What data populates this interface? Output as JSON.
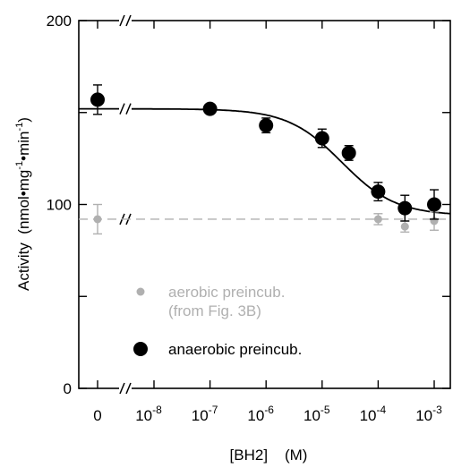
{
  "chart_data": {
    "type": "scatter",
    "xlabel": "[BH2]    (M)",
    "ylabel": "Activity  (nmol•mg",
    "ylabel_sup1": "-1",
    "ylabel_mid": "•min",
    "ylabel_sup2": "-1",
    "ylabel_end": ")",
    "ylim": [
      0,
      200
    ],
    "y_ticks": [
      "0",
      "100",
      "200"
    ],
    "x_scale": "log",
    "x_ticks": [
      {
        "label": "0",
        "value": 0
      },
      {
        "label": "10",
        "exp": "-8",
        "value": 1e-08
      },
      {
        "label": "10",
        "exp": "-7",
        "value": 1e-07
      },
      {
        "label": "10",
        "exp": "-6",
        "value": 1e-06
      },
      {
        "label": "10",
        "exp": "-5",
        "value": 1e-05
      },
      {
        "label": "10",
        "exp": "-4",
        "value": 0.0001
      },
      {
        "label": "10",
        "exp": "-3",
        "value": 0.001
      }
    ],
    "series": [
      {
        "name": "anaerobic preincub.",
        "color": "#000000",
        "marker": "large-circle",
        "points": [
          {
            "x": 0,
            "y": 157,
            "err": 8
          },
          {
            "x": 1e-07,
            "y": 152,
            "err": 0
          },
          {
            "x": 1e-06,
            "y": 143,
            "err": 4
          },
          {
            "x": 1e-05,
            "y": 136,
            "err": 5
          },
          {
            "x": 3e-05,
            "y": 128,
            "err": 4
          },
          {
            "x": 0.0001,
            "y": 107,
            "err": 5
          },
          {
            "x": 0.0003,
            "y": 98,
            "err": 7
          },
          {
            "x": 0.001,
            "y": 100,
            "err": 8
          }
        ],
        "fit": {
          "top": 152,
          "bottom": 94,
          "ic50_log": -4.65,
          "hill": 0.9
        }
      },
      {
        "name": "aerobic preincub.\n(from Fig. 3B)",
        "color": "#b0b0b0",
        "marker": "small-circle",
        "points": [
          {
            "x": 0,
            "y": 92,
            "err": 8
          },
          {
            "x": 0.0001,
            "y": 92,
            "err": 3
          },
          {
            "x": 0.0003,
            "y": 88,
            "err": 3
          },
          {
            "x": 0.001,
            "y": 91,
            "err": 5
          }
        ],
        "reference_line": 92
      }
    ],
    "legend": {
      "placement": "lower-left",
      "items": [
        {
          "label_line1": "aerobic preincub.",
          "label_line2": "(from Fig. 3B)",
          "color": "#b0b0b0",
          "marker": "small-circle"
        },
        {
          "label_line1": "anaerobic preincub.",
          "label_line2": "",
          "color": "#000000",
          "marker": "large-circle"
        }
      ]
    },
    "axis_break": {
      "y_values": [
        200,
        152,
        0
      ],
      "x_break": "between 0 and 10^-8"
    }
  }
}
